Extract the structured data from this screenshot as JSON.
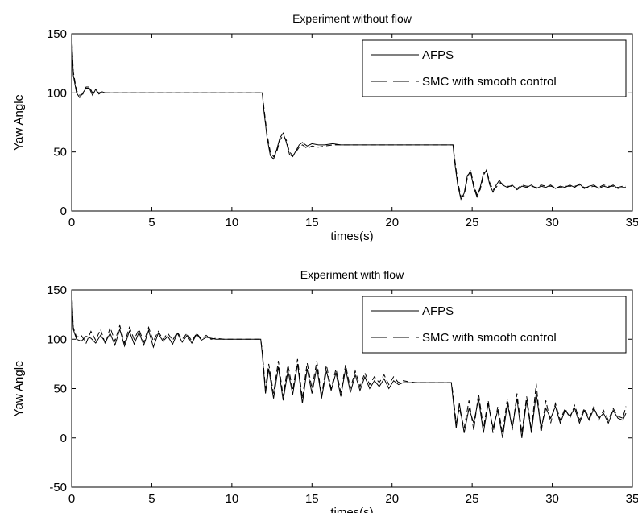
{
  "chart_data": [
    {
      "type": "line",
      "title": "Experiment without flow",
      "xlabel": "times(s)",
      "ylabel": "Yaw Angle",
      "xlim": [
        0,
        35
      ],
      "ylim": [
        0,
        150
      ],
      "xticks": [
        0,
        5,
        10,
        15,
        20,
        25,
        30,
        35
      ],
      "yticks": [
        0,
        50,
        100,
        150
      ],
      "xtick_labels": [
        "0",
        "5",
        "10",
        "15",
        "20",
        "25",
        "30",
        "35"
      ],
      "ytick_labels": [
        "0",
        "50",
        "100",
        "150"
      ],
      "grid": false,
      "legend_position": "top-right",
      "series": [
        {
          "name": "AFPS",
          "style": "solid",
          "x": [
            0,
            0.1,
            0.3,
            0.5,
            0.7,
            0.9,
            1.1,
            1.3,
            1.5,
            1.7,
            1.9,
            2.1,
            2.3,
            3,
            6,
            9,
            11.9,
            12.0,
            12.2,
            12.4,
            12.6,
            12.8,
            13.0,
            13.2,
            13.4,
            13.6,
            13.8,
            14.0,
            14.2,
            14.4,
            14.7,
            15.0,
            15.4,
            15.8,
            16.3,
            16.8,
            18,
            20,
            22,
            23.8,
            23.9,
            24.1,
            24.3,
            24.5,
            24.7,
            24.9,
            25.1,
            25.3,
            25.5,
            25.7,
            25.9,
            26.1,
            26.3,
            26.5,
            26.7,
            26.9,
            27.2,
            27.5,
            27.8,
            28.1,
            28.4,
            28.7,
            29.0,
            29.3,
            29.6,
            29.9,
            30.2,
            30.5,
            30.8,
            31.1,
            31.4,
            31.7,
            32.0,
            32.3,
            32.6,
            32.9,
            33.2,
            33.5,
            33.8,
            34.1,
            34.4,
            34.6
          ],
          "y": [
            150,
            115,
            100,
            96,
            100,
            104,
            104,
            98,
            103,
            99,
            101,
            100,
            100,
            100,
            100,
            100,
            100,
            85,
            62,
            47,
            44,
            52,
            62,
            66,
            58,
            48,
            46,
            51,
            56,
            58,
            55,
            57,
            56,
            56,
            57,
            56,
            56,
            56,
            56,
            56,
            42,
            22,
            10,
            15,
            30,
            33,
            20,
            12,
            20,
            32,
            34,
            22,
            16,
            22,
            26,
            22,
            20,
            22,
            18,
            21,
            20,
            22,
            19,
            21,
            20,
            22,
            19,
            21,
            20,
            22,
            20,
            23,
            19,
            21,
            22,
            19,
            21,
            20,
            22,
            19,
            20,
            20
          ]
        },
        {
          "name": "SMC with smooth control",
          "style": "dashed",
          "x": [
            0,
            0.1,
            0.3,
            0.5,
            0.7,
            0.9,
            1.1,
            1.3,
            1.5,
            1.7,
            1.9,
            2.1,
            2.3,
            3,
            6,
            9,
            11.9,
            12.0,
            12.2,
            12.4,
            12.6,
            12.8,
            13.0,
            13.2,
            13.4,
            13.6,
            13.8,
            14.0,
            14.2,
            14.4,
            14.7,
            15.0,
            15.4,
            15.8,
            16.3,
            16.8,
            18,
            20,
            22,
            23.8,
            23.9,
            24.1,
            24.3,
            24.5,
            24.7,
            24.9,
            25.1,
            25.3,
            25.5,
            25.7,
            25.9,
            26.1,
            26.3,
            26.5,
            26.7,
            26.9,
            27.2,
            27.5,
            27.8,
            28.1,
            28.4,
            28.7,
            29.0,
            29.3,
            29.6,
            29.9,
            30.2,
            30.5,
            30.8,
            31.1,
            31.4,
            31.7,
            32.0,
            32.3,
            32.6,
            32.9,
            33.2,
            33.5,
            33.8,
            34.1,
            34.4,
            34.6
          ],
          "y": [
            150,
            118,
            102,
            98,
            99,
            105,
            105,
            100,
            102,
            100,
            101,
            100,
            100,
            100,
            100,
            100,
            100,
            88,
            65,
            50,
            46,
            50,
            60,
            64,
            60,
            50,
            47,
            50,
            54,
            56,
            53,
            55,
            54,
            55,
            56,
            56,
            56,
            56,
            56,
            56,
            45,
            25,
            12,
            13,
            28,
            35,
            22,
            14,
            18,
            30,
            35,
            24,
            18,
            20,
            24,
            23,
            21,
            21,
            19,
            22,
            21,
            21,
            20,
            22,
            21,
            21,
            20,
            20,
            21,
            21,
            21,
            22,
            20,
            20,
            21,
            20,
            22,
            21,
            21,
            20,
            21,
            21
          ]
        }
      ]
    },
    {
      "type": "line",
      "title": "Experiment with flow",
      "xlabel": "times(s)",
      "ylabel": "Yaw Angle",
      "xlim": [
        0,
        35
      ],
      "ylim": [
        -50,
        150
      ],
      "xticks": [
        0,
        5,
        10,
        15,
        20,
        25,
        30,
        35
      ],
      "yticks": [
        -50,
        0,
        50,
        100,
        150
      ],
      "xtick_labels": [
        "0",
        "5",
        "10",
        "15",
        "20",
        "25",
        "30",
        "35"
      ],
      "ytick_labels": [
        "-50",
        "0",
        "50",
        "100",
        "150"
      ],
      "grid": false,
      "legend_position": "top-right",
      "series": [
        {
          "name": "AFPS",
          "style": "solid",
          "x": [
            0,
            0.1,
            0.3,
            0.6,
            0.9,
            1.2,
            1.5,
            1.8,
            2.1,
            2.4,
            2.7,
            3.0,
            3.3,
            3.6,
            3.9,
            4.2,
            4.5,
            4.8,
            5.1,
            5.4,
            5.7,
            6.0,
            6.3,
            6.6,
            6.9,
            7.2,
            7.5,
            7.8,
            8.1,
            8.4,
            8.7,
            9.0,
            9.5,
            10,
            11,
            11.8,
            11.9,
            12.1,
            12.3,
            12.6,
            12.9,
            13.2,
            13.5,
            13.8,
            14.1,
            14.4,
            14.7,
            15.0,
            15.3,
            15.6,
            15.9,
            16.2,
            16.5,
            16.8,
            17.1,
            17.4,
            17.7,
            18.0,
            18.3,
            18.6,
            18.9,
            19.2,
            19.5,
            19.8,
            20.1,
            20.4,
            20.7,
            21.0,
            21.5,
            22,
            23,
            23.7,
            23.8,
            24.0,
            24.2,
            24.5,
            24.8,
            25.1,
            25.4,
            25.7,
            26.0,
            26.3,
            26.6,
            26.9,
            27.2,
            27.5,
            27.8,
            28.1,
            28.4,
            28.7,
            29.0,
            29.3,
            29.6,
            29.9,
            30.2,
            30.5,
            30.8,
            31.1,
            31.4,
            31.7,
            32.0,
            32.3,
            32.6,
            32.9,
            33.2,
            33.5,
            33.8,
            34.1,
            34.4,
            34.6
          ],
          "y": [
            150,
            110,
            100,
            98,
            103,
            101,
            96,
            104,
            97,
            106,
            94,
            110,
            93,
            108,
            95,
            107,
            94,
            109,
            92,
            106,
            98,
            103,
            95,
            106,
            97,
            104,
            96,
            105,
            99,
            102,
            101,
            100,
            100,
            100,
            100,
            100,
            85,
            45,
            70,
            40,
            72,
            38,
            68,
            44,
            75,
            35,
            70,
            45,
            72,
            40,
            68,
            48,
            66,
            42,
            70,
            46,
            64,
            48,
            62,
            50,
            58,
            52,
            60,
            50,
            58,
            54,
            56,
            56,
            56,
            56,
            56,
            56,
            40,
            10,
            35,
            5,
            30,
            15,
            40,
            5,
            35,
            10,
            28,
            0,
            35,
            10,
            40,
            0,
            38,
            5,
            45,
            10,
            30,
            20,
            32,
            15,
            28,
            22,
            30,
            15,
            28,
            18,
            30,
            20,
            25,
            15,
            28,
            20,
            18,
            25
          ]
        },
        {
          "name": "SMC with smooth control",
          "style": "dashed",
          "x": [
            0,
            0.1,
            0.3,
            0.6,
            0.9,
            1.2,
            1.5,
            1.8,
            2.1,
            2.4,
            2.7,
            3.0,
            3.3,
            3.6,
            3.9,
            4.2,
            4.5,
            4.8,
            5.1,
            5.4,
            5.7,
            6.0,
            6.3,
            6.6,
            6.9,
            7.2,
            7.5,
            7.8,
            8.1,
            8.4,
            8.7,
            9.0,
            9.5,
            10,
            11,
            11.8,
            11.9,
            12.1,
            12.3,
            12.6,
            12.9,
            13.2,
            13.5,
            13.8,
            14.1,
            14.4,
            14.7,
            15.0,
            15.3,
            15.6,
            15.9,
            16.2,
            16.5,
            16.8,
            17.1,
            17.4,
            17.7,
            18.0,
            18.3,
            18.6,
            18.9,
            19.2,
            19.5,
            19.8,
            20.1,
            20.4,
            20.7,
            21.0,
            21.5,
            22,
            23,
            23.7,
            23.8,
            24.0,
            24.2,
            24.5,
            24.8,
            25.1,
            25.4,
            25.7,
            26.0,
            26.3,
            26.6,
            26.9,
            27.2,
            27.5,
            27.8,
            28.1,
            28.4,
            28.7,
            29.0,
            29.3,
            29.6,
            29.9,
            30.2,
            30.5,
            30.8,
            31.1,
            31.4,
            31.7,
            32.0,
            32.3,
            32.6,
            32.9,
            33.2,
            33.5,
            33.8,
            34.1,
            34.4,
            34.6
          ],
          "y": [
            150,
            112,
            102,
            104,
            96,
            108,
            99,
            110,
            95,
            112,
            98,
            114,
            96,
            112,
            100,
            110,
            97,
            112,
            98,
            108,
            100,
            106,
            99,
            107,
            100,
            106,
            98,
            106,
            100,
            104,
            100,
            101,
            100,
            100,
            100,
            100,
            88,
            50,
            75,
            45,
            78,
            42,
            74,
            48,
            80,
            40,
            76,
            50,
            78,
            42,
            74,
            50,
            70,
            46,
            74,
            50,
            68,
            52,
            66,
            54,
            62,
            56,
            64,
            54,
            62,
            56,
            58,
            57,
            56,
            56,
            56,
            56,
            45,
            15,
            30,
            10,
            38,
            8,
            45,
            10,
            38,
            5,
            32,
            5,
            40,
            8,
            45,
            5,
            42,
            8,
            55,
            5,
            38,
            15,
            35,
            18,
            30,
            20,
            33,
            18,
            30,
            20,
            32,
            18,
            28,
            18,
            30,
            22,
            20,
            32
          ]
        }
      ]
    }
  ]
}
